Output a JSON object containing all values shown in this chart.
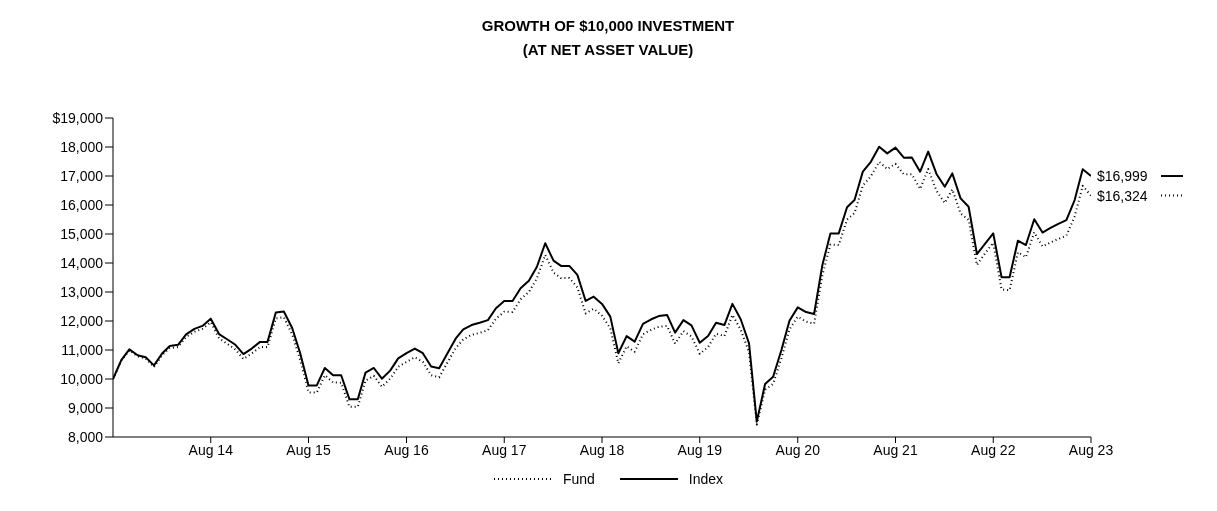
{
  "chart_data": {
    "type": "line",
    "title": "GROWTH OF $10,000 INVESTMENT",
    "subtitle": "(AT NET ASSET VALUE)",
    "x": [
      "2013-08",
      "2013-09",
      "2013-10",
      "2013-11",
      "2013-12",
      "2014-01",
      "2014-02",
      "2014-03",
      "2014-04",
      "2014-05",
      "2014-06",
      "2014-07",
      "2014-08",
      "2014-09",
      "2014-10",
      "2014-11",
      "2014-12",
      "2015-01",
      "2015-02",
      "2015-03",
      "2015-04",
      "2015-05",
      "2015-06",
      "2015-07",
      "2015-08",
      "2015-09",
      "2015-10",
      "2015-11",
      "2015-12",
      "2016-01",
      "2016-02",
      "2016-03",
      "2016-04",
      "2016-05",
      "2016-06",
      "2016-07",
      "2016-08",
      "2016-09",
      "2016-10",
      "2016-11",
      "2016-12",
      "2017-01",
      "2017-02",
      "2017-03",
      "2017-04",
      "2017-05",
      "2017-06",
      "2017-07",
      "2017-08",
      "2017-09",
      "2017-10",
      "2017-11",
      "2017-12",
      "2018-01",
      "2018-02",
      "2018-03",
      "2018-04",
      "2018-05",
      "2018-06",
      "2018-07",
      "2018-08",
      "2018-09",
      "2018-10",
      "2018-11",
      "2018-12",
      "2019-01",
      "2019-02",
      "2019-03",
      "2019-04",
      "2019-05",
      "2019-06",
      "2019-07",
      "2019-08",
      "2019-09",
      "2019-10",
      "2019-11",
      "2019-12",
      "2020-01",
      "2020-02",
      "2020-03",
      "2020-04",
      "2020-05",
      "2020-06",
      "2020-07",
      "2020-08",
      "2020-09",
      "2020-10",
      "2020-11",
      "2020-12",
      "2021-01",
      "2021-02",
      "2021-03",
      "2021-04",
      "2021-05",
      "2021-06",
      "2021-07",
      "2021-08",
      "2021-09",
      "2021-10",
      "2021-11",
      "2021-12",
      "2022-01",
      "2022-02",
      "2022-03",
      "2022-04",
      "2022-05",
      "2022-06",
      "2022-07",
      "2022-08",
      "2022-09",
      "2022-10",
      "2022-11",
      "2022-12",
      "2023-01",
      "2023-02",
      "2023-03",
      "2023-04",
      "2023-05",
      "2023-06",
      "2023-07",
      "2023-08"
    ],
    "series": [
      {
        "name": "Fund",
        "color": "#000000",
        "line_style": "dotted",
        "values": [
          10000,
          10630,
          10990,
          10780,
          10710,
          10410,
          10830,
          11070,
          11100,
          11450,
          11630,
          11730,
          11960,
          11400,
          11220,
          11020,
          10690,
          10880,
          11100,
          11100,
          12090,
          12130,
          11540,
          10660,
          9540,
          9530,
          10130,
          9880,
          9870,
          9040,
          9040,
          9950,
          10110,
          9730,
          10010,
          10420,
          10590,
          10750,
          10590,
          10130,
          10060,
          10570,
          11070,
          11370,
          11520,
          11590,
          11680,
          12080,
          12320,
          12310,
          12750,
          13000,
          13470,
          14280,
          13670,
          13480,
          13480,
          13160,
          12260,
          12420,
          12180,
          11750,
          10540,
          11130,
          10940,
          11540,
          11700,
          11800,
          11830,
          11220,
          11650,
          11470,
          10870,
          11100,
          11560,
          11480,
          12210,
          11700,
          10930,
          8430,
          9630,
          9830,
          10720,
          11710,
          12150,
          11980,
          11910,
          13580,
          14640,
          14620,
          15500,
          15720,
          16670,
          16990,
          17490,
          17240,
          17420,
          17060,
          17060,
          16550,
          17240,
          16490,
          16070,
          16540,
          15710,
          15490,
          13930,
          14330,
          14700,
          13090,
          13060,
          14370,
          14200,
          15060,
          14570,
          14700,
          14830,
          14940,
          15610,
          16660,
          16324
        ]
      },
      {
        "name": "Index",
        "color": "#000000",
        "line_style": "solid",
        "values": [
          10000,
          10650,
          11020,
          10820,
          10750,
          10470,
          10890,
          11140,
          11180,
          11540,
          11730,
          11830,
          12080,
          11550,
          11370,
          11180,
          10860,
          11050,
          11280,
          11280,
          12290,
          12330,
          11760,
          10890,
          9780,
          9780,
          10380,
          10130,
          10130,
          9300,
          9300,
          10220,
          10380,
          10010,
          10290,
          10710,
          10890,
          11050,
          10890,
          10430,
          10370,
          10890,
          11400,
          11710,
          11860,
          11940,
          12030,
          12440,
          12690,
          12690,
          13130,
          13390,
          13870,
          14680,
          14080,
          13900,
          13900,
          13590,
          12690,
          12840,
          12590,
          12150,
          10890,
          11480,
          11290,
          11900,
          12060,
          12170,
          12210,
          11600,
          12030,
          11850,
          11250,
          11480,
          11940,
          11860,
          12590,
          12060,
          11230,
          8530,
          9830,
          10080,
          11000,
          12010,
          12470,
          12310,
          12240,
          13930,
          15020,
          15020,
          15920,
          16170,
          17150,
          17490,
          18010,
          17780,
          17980,
          17630,
          17640,
          17150,
          17840,
          17070,
          16630,
          17090,
          16230,
          15940,
          14310,
          14660,
          15020,
          13510,
          13510,
          14770,
          14620,
          15510,
          15050,
          15200,
          15350,
          15480,
          16170,
          17230,
          16999
        ]
      }
    ],
    "xlim": [
      "2013-08",
      "2023-08"
    ],
    "xticks": [
      {
        "value": "2014-08",
        "label": "Aug 14"
      },
      {
        "value": "2015-08",
        "label": "Aug 15"
      },
      {
        "value": "2016-08",
        "label": "Aug 16"
      },
      {
        "value": "2017-08",
        "label": "Aug 17"
      },
      {
        "value": "2018-08",
        "label": "Aug 18"
      },
      {
        "value": "2019-08",
        "label": "Aug 19"
      },
      {
        "value": "2020-08",
        "label": "Aug 20"
      },
      {
        "value": "2021-08",
        "label": "Aug 21"
      },
      {
        "value": "2022-08",
        "label": "Aug 22"
      },
      {
        "value": "2023-08",
        "label": "Aug 23"
      }
    ],
    "ylim": [
      8000,
      19000
    ],
    "yticks": [
      {
        "value": 8000,
        "label": "8,000"
      },
      {
        "value": 9000,
        "label": "9,000"
      },
      {
        "value": 10000,
        "label": "10,000"
      },
      {
        "value": 11000,
        "label": "11,000"
      },
      {
        "value": 12000,
        "label": "12,000"
      },
      {
        "value": 13000,
        "label": "13,000"
      },
      {
        "value": 14000,
        "label": "14,000"
      },
      {
        "value": 15000,
        "label": "15,000"
      },
      {
        "value": 16000,
        "label": "16,000"
      },
      {
        "value": 17000,
        "label": "17,000"
      },
      {
        "value": 18000,
        "label": "18,000"
      },
      {
        "value": 19000,
        "label": "$19,000"
      }
    ],
    "annotations": [
      {
        "text": "$16,999",
        "x": "2023-08",
        "y": 16999
      },
      {
        "text": "$16,324",
        "x": "2023-08",
        "y": 16324
      }
    ],
    "grid": false,
    "legend": "bottom",
    "marker": "none"
  }
}
